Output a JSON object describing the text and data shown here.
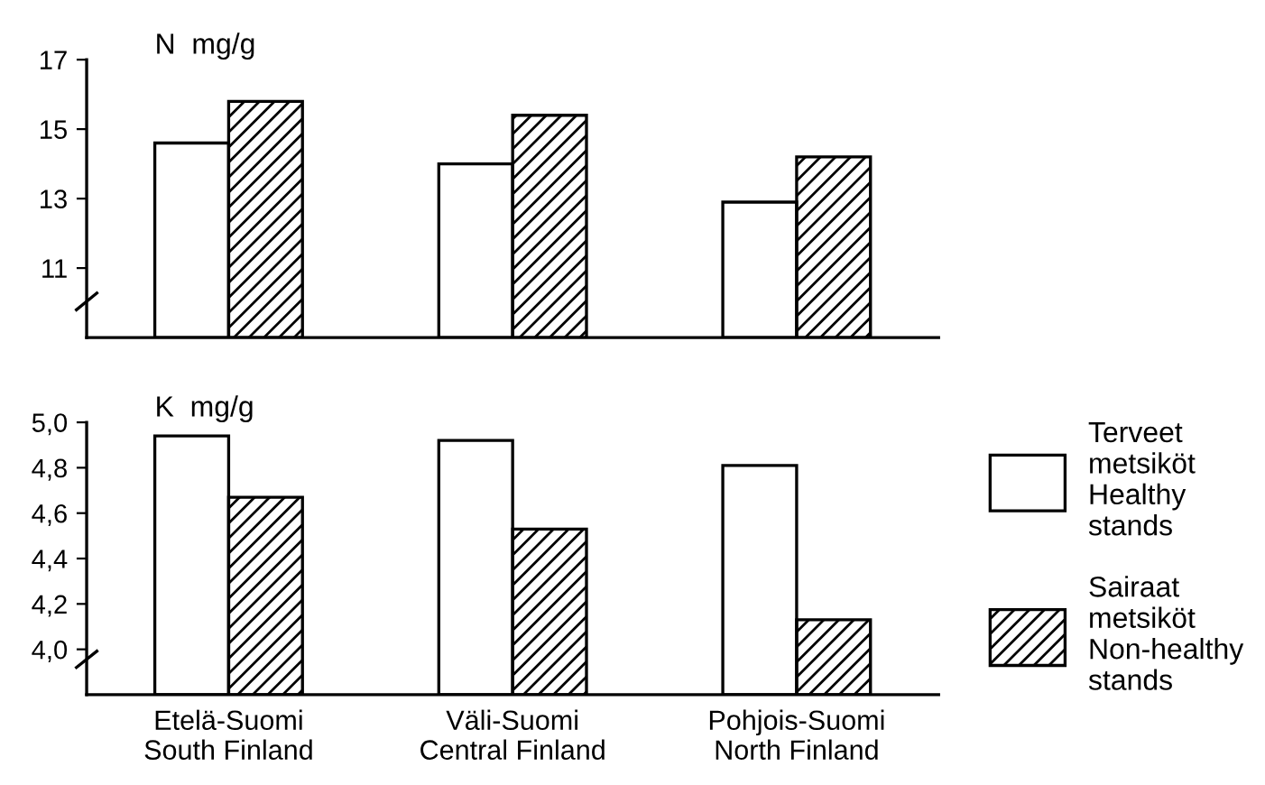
{
  "chart_data": [
    {
      "type": "bar",
      "ylabel": "N  mg/g",
      "categories": [
        null,
        null,
        null
      ],
      "series": [
        {
          "color": "#ffffff",
          "values": [
            14.6,
            14.0,
            12.9
          ]
        },
        {
          "color": "#000000",
          "values": [
            15.8,
            15.4,
            14.2
          ]
        }
      ],
      "ylim": [
        9,
        17
      ],
      "yticks": [
        11,
        13,
        15,
        17
      ],
      "tick_labels": "y",
      "grid": false,
      "legend": false
    },
    {
      "type": "bar",
      "ylabel": "K  mg/g",
      "categories": [
        "Etelä-Suomi\nSouth Finland",
        "Väli-Suomi\nCentral Finland",
        "Pohjois-Suomi\nNorth Finland"
      ],
      "series": [
        {
          "name": "Terveet\nmetsiköt\nHealthy\nstands",
          "color": "#ffffff",
          "values": [
            4.94,
            4.92,
            4.81
          ]
        },
        {
          "name": "Sairaat\nmetsiköt\nNon-healthy\nstands",
          "color": "#000000",
          "values": [
            4.67,
            4.53,
            4.13
          ]
        }
      ],
      "ylim": [
        3.8,
        5.0
      ],
      "yticks": [
        {
          "value": 4.0,
          "label": "4,0"
        },
        {
          "value": 4.2,
          "label": "4,2"
        },
        {
          "value": 4.4,
          "label": "4,4"
        },
        {
          "value": 4.6,
          "label": "4,6"
        },
        {
          "value": 4.8,
          "label": "4,8"
        },
        {
          "value": 5.0,
          "label": "5,0"
        }
      ],
      "grid": false,
      "legend": "right"
    }
  ]
}
